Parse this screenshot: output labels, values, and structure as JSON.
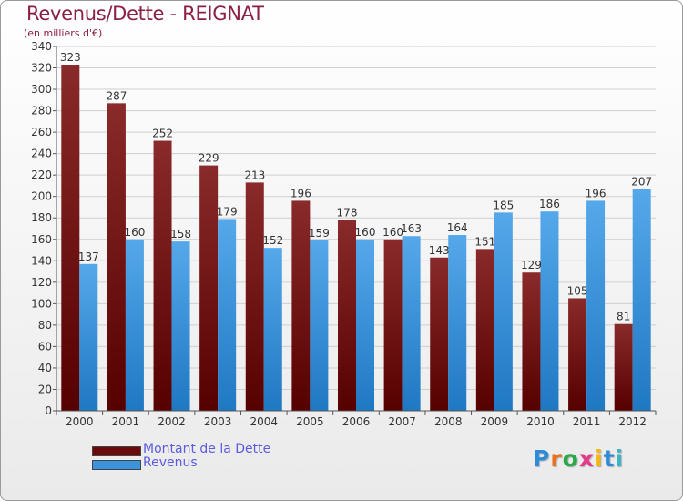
{
  "header": {
    "title": "Revenus/Dette - REIGNAT",
    "subtitle": "(en milliers d'€)"
  },
  "colors": {
    "debt": "#7a1414",
    "revenue": "#3a93dc",
    "title": "#8b1f45",
    "legend_text": "#5b5bdc"
  },
  "chart_data": {
    "type": "bar",
    "categories": [
      "2000",
      "2001",
      "2002",
      "2003",
      "2004",
      "2005",
      "2006",
      "2007",
      "2008",
      "2009",
      "2010",
      "2011",
      "2012"
    ],
    "series": [
      {
        "name": "Montant de la Dette",
        "values": [
          323,
          287,
          252,
          229,
          213,
          196,
          178,
          160,
          143,
          151,
          129,
          105,
          81
        ]
      },
      {
        "name": "Revenus",
        "values": [
          137,
          160,
          158,
          179,
          152,
          159,
          160,
          163,
          164,
          185,
          186,
          196,
          207
        ]
      }
    ],
    "ylim": [
      0,
      340
    ],
    "yticks": [
      0,
      20,
      40,
      60,
      80,
      100,
      120,
      140,
      160,
      180,
      200,
      220,
      240,
      260,
      280,
      300,
      320,
      340
    ],
    "grid": true,
    "legend_position": "bottom-left"
  },
  "legend": {
    "items": [
      {
        "label": "Montant de la Dette"
      },
      {
        "label": "Revenus"
      }
    ]
  },
  "logo": {
    "text": "Proxiti"
  }
}
